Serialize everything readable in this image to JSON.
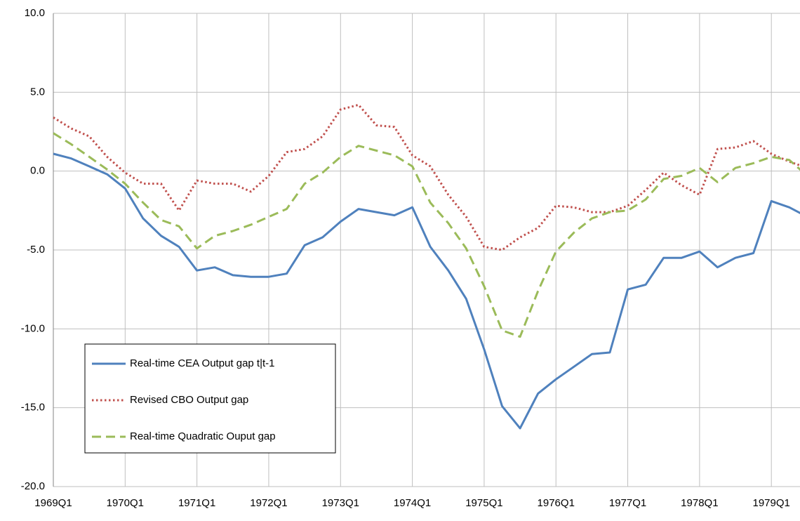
{
  "chart_data": {
    "type": "line",
    "categories": [
      "1969Q1",
      null,
      null,
      null,
      "1970Q1",
      null,
      null,
      null,
      "1971Q1",
      null,
      null,
      null,
      "1972Q1",
      null,
      null,
      null,
      "1973Q1",
      null,
      null,
      null,
      "1974Q1",
      null,
      null,
      null,
      "1975Q1",
      null,
      null,
      null,
      "1976Q1",
      null,
      null,
      null,
      "1977Q1",
      null,
      null,
      null,
      "1978Q1",
      null,
      null,
      null,
      "1979Q1",
      null,
      null
    ],
    "series": [
      {
        "name": "Real-time CEA Output gap t|t-1",
        "color": "#4f81bd",
        "dash": "solid",
        "values": [
          1.1,
          0.8,
          0.3,
          -0.2,
          -1.1,
          -3.0,
          -4.1,
          -4.8,
          -6.3,
          -6.1,
          -6.6,
          -6.7,
          -6.7,
          -6.5,
          -4.7,
          -4.2,
          -3.2,
          -2.4,
          -2.6,
          -2.8,
          -2.3,
          -4.8,
          -6.3,
          -8.1,
          -11.3,
          -14.9,
          -16.3,
          -14.1,
          -13.2,
          -12.4,
          -11.6,
          -11.5,
          -7.5,
          -7.2,
          -5.5,
          -5.5,
          -5.1,
          -6.1,
          -5.5,
          -5.2,
          -1.9,
          -2.3,
          -2.9
        ]
      },
      {
        "name": "Revised CBO Output gap",
        "color": "#c0504d",
        "dash": "dotted",
        "values": [
          3.4,
          2.7,
          2.2,
          0.9,
          -0.1,
          -0.8,
          -0.8,
          -2.5,
          -0.6,
          -0.8,
          -0.8,
          -1.3,
          -0.3,
          1.2,
          1.4,
          2.2,
          3.9,
          4.2,
          2.9,
          2.8,
          1.0,
          0.3,
          -1.5,
          -2.9,
          -4.8,
          -5.0,
          -4.2,
          -3.6,
          -2.2,
          -2.3,
          -2.6,
          -2.6,
          -2.2,
          -1.2,
          -0.1,
          -0.9,
          -1.5,
          1.4,
          1.5,
          1.9,
          1.1,
          0.6,
          0.2
        ]
      },
      {
        "name": "Real-time Quadratic Ouput gap",
        "color": "#9bbb59",
        "dash": "dashed",
        "values": [
          2.4,
          1.7,
          0.9,
          0.1,
          -0.8,
          -2.0,
          -3.1,
          -3.5,
          -4.9,
          -4.1,
          -3.8,
          -3.4,
          -2.9,
          -2.4,
          -0.8,
          -0.1,
          0.9,
          1.6,
          1.3,
          1.0,
          0.3,
          -2.0,
          -3.3,
          -4.9,
          -7.3,
          -10.1,
          -10.5,
          -7.6,
          -5.1,
          -3.9,
          -3.0,
          -2.6,
          -2.5,
          -1.8,
          -0.5,
          -0.3,
          0.2,
          -0.7,
          0.2,
          0.5,
          0.9,
          0.7,
          -0.3
        ]
      }
    ],
    "ylim": [
      -20,
      10
    ],
    "yticks": [
      {
        "value": -20,
        "label": "-20.0"
      },
      {
        "value": -15,
        "label": "-15.0"
      },
      {
        "value": -10,
        "label": "-10.0"
      },
      {
        "value": -5,
        "label": "-5.0"
      },
      {
        "value": 0,
        "label": "0.0"
      },
      {
        "value": 5,
        "label": "5.0"
      },
      {
        "value": 10,
        "label": "10.0"
      }
    ],
    "grid": true,
    "legend": "lower left"
  }
}
